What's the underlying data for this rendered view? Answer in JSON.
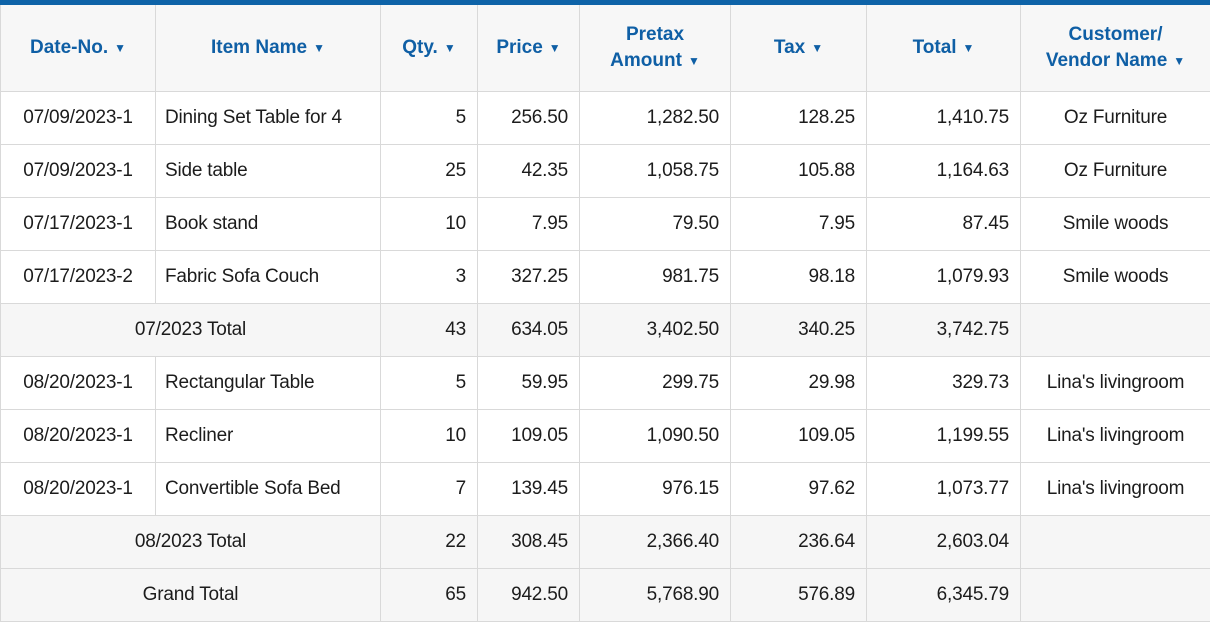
{
  "colors": {
    "accent_bar": "#0e63a8",
    "header_text": "#0f5fa5",
    "cell_border": "#d9d9d9",
    "header_bg": "#f7f7f7",
    "total_row_bg": "#f6f6f6",
    "row_bg": "#ffffff",
    "text": "#1c1c1c"
  },
  "table": {
    "sort_glyph": "▼",
    "columns": [
      {
        "key": "date_no",
        "label": "Date-No.",
        "align": "center"
      },
      {
        "key": "item_name",
        "label": "Item Name",
        "align": "left"
      },
      {
        "key": "qty",
        "label": "Qty.",
        "align": "right"
      },
      {
        "key": "price",
        "label": "Price",
        "align": "right"
      },
      {
        "key": "pretax_amount",
        "label": "Pretax\nAmount",
        "align": "right"
      },
      {
        "key": "tax",
        "label": "Tax",
        "align": "right"
      },
      {
        "key": "total",
        "label": "Total",
        "align": "right"
      },
      {
        "key": "customer_vendor",
        "label": "Customer/\nVendor Name",
        "align": "center"
      }
    ],
    "rows": [
      {
        "type": "data",
        "date_no": "07/09/2023-1",
        "item_name": "Dining Set Table for 4",
        "qty": "5",
        "price": "256.50",
        "pretax_amount": "1,282.50",
        "tax": "128.25",
        "total": "1,410.75",
        "customer_vendor": "Oz Furniture"
      },
      {
        "type": "data",
        "date_no": "07/09/2023-1",
        "item_name": "Side table",
        "qty": "25",
        "price": "42.35",
        "pretax_amount": "1,058.75",
        "tax": "105.88",
        "total": "1,164.63",
        "customer_vendor": "Oz Furniture"
      },
      {
        "type": "data",
        "date_no": "07/17/2023-1",
        "item_name": "Book stand",
        "qty": "10",
        "price": "7.95",
        "pretax_amount": "79.50",
        "tax": "7.95",
        "total": "87.45",
        "customer_vendor": "Smile woods"
      },
      {
        "type": "data",
        "date_no": "07/17/2023-2",
        "item_name": "Fabric Sofa Couch",
        "qty": "3",
        "price": "327.25",
        "pretax_amount": "981.75",
        "tax": "98.18",
        "total": "1,079.93",
        "customer_vendor": "Smile woods"
      },
      {
        "type": "subtotal",
        "label": "07/2023 Total",
        "qty": "43",
        "price": "634.05",
        "pretax_amount": "3,402.50",
        "tax": "340.25",
        "total": "3,742.75",
        "customer_vendor": ""
      },
      {
        "type": "data",
        "date_no": "08/20/2023-1",
        "item_name": "Rectangular Table",
        "qty": "5",
        "price": "59.95",
        "pretax_amount": "299.75",
        "tax": "29.98",
        "total": "329.73",
        "customer_vendor": "Lina's livingroom"
      },
      {
        "type": "data",
        "date_no": "08/20/2023-1",
        "item_name": "Recliner",
        "qty": "10",
        "price": "109.05",
        "pretax_amount": "1,090.50",
        "tax": "109.05",
        "total": "1,199.55",
        "customer_vendor": "Lina's livingroom"
      },
      {
        "type": "data",
        "date_no": "08/20/2023-1",
        "item_name": "Convertible Sofa Bed",
        "qty": "7",
        "price": "139.45",
        "pretax_amount": "976.15",
        "tax": "97.62",
        "total": "1,073.77",
        "customer_vendor": "Lina's livingroom"
      },
      {
        "type": "subtotal",
        "label": "08/2023 Total",
        "qty": "22",
        "price": "308.45",
        "pretax_amount": "2,366.40",
        "tax": "236.64",
        "total": "2,603.04",
        "customer_vendor": ""
      },
      {
        "type": "grand_total",
        "label": "Grand Total",
        "qty": "65",
        "price": "942.50",
        "pretax_amount": "5,768.90",
        "tax": "576.89",
        "total": "6,345.79",
        "customer_vendor": ""
      }
    ]
  }
}
